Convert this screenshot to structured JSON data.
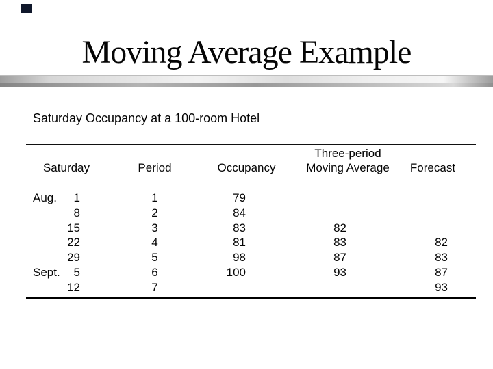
{
  "slide": {
    "title": "Moving Average Example",
    "subtitle": "Saturday Occupancy at a 100-room Hotel"
  },
  "table": {
    "headers": {
      "saturday": "Saturday",
      "period": "Period",
      "occupancy": "Occupancy",
      "moving_average_line1": "Three-period",
      "moving_average_line2": "Moving Average",
      "forecast": "Forecast"
    },
    "rows": [
      {
        "month": "Aug.",
        "day": "1",
        "period": "1",
        "occupancy": "79",
        "moving_average": "",
        "forecast": ""
      },
      {
        "month": "",
        "day": "8",
        "period": "2",
        "occupancy": "84",
        "moving_average": "",
        "forecast": ""
      },
      {
        "month": "",
        "day": "15",
        "period": "3",
        "occupancy": "83",
        "moving_average": "82",
        "forecast": ""
      },
      {
        "month": "",
        "day": "22",
        "period": "4",
        "occupancy": "81",
        "moving_average": "83",
        "forecast": "82"
      },
      {
        "month": "",
        "day": "29",
        "period": "5",
        "occupancy": "98",
        "moving_average": "87",
        "forecast": "83"
      },
      {
        "month": "Sept.",
        "day": "5",
        "period": "6",
        "occupancy": "100",
        "moving_average": "93",
        "forecast": "87"
      },
      {
        "month": "",
        "day": "12",
        "period": "7",
        "occupancy": "",
        "moving_average": "",
        "forecast": "93"
      }
    ]
  },
  "colors": {
    "background": "#ffffff",
    "text": "#050505",
    "divider_silver": "#ededed",
    "divider_gray": "#989898",
    "corner_square": "#10182b"
  }
}
